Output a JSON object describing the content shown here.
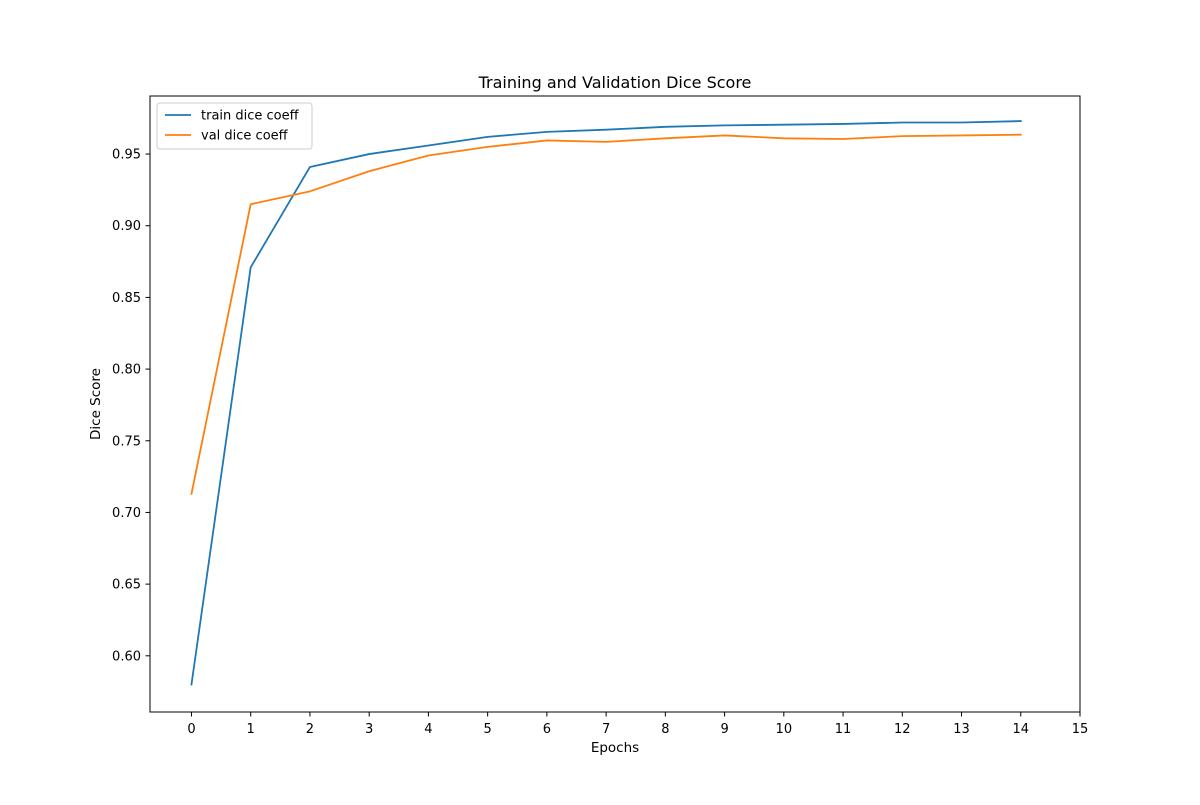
{
  "chart_data": {
    "type": "line",
    "title": "Training and Validation Dice Score",
    "xlabel": "Epochs",
    "ylabel": "Dice Score",
    "xlim": [
      -0.7,
      15
    ],
    "ylim": [
      0.5608,
      0.9905
    ],
    "xticks": [
      0,
      1,
      2,
      3,
      4,
      5,
      6,
      7,
      8,
      9,
      10,
      11,
      12,
      13,
      14,
      15
    ],
    "xtick_labels": [
      "0",
      "1",
      "2",
      "3",
      "4",
      "5",
      "6",
      "7",
      "8",
      "9",
      "10",
      "11",
      "12",
      "13",
      "14",
      "15"
    ],
    "yticks": [
      0.6,
      0.65,
      0.7,
      0.75,
      0.8,
      0.85,
      0.9,
      0.95
    ],
    "ytick_labels": [
      "0.60",
      "0.65",
      "0.70",
      "0.75",
      "0.80",
      "0.85",
      "0.90",
      "0.95"
    ],
    "grid": false,
    "legend_position": "upper left",
    "x": [
      0,
      1,
      2,
      3,
      4,
      5,
      6,
      7,
      8,
      9,
      10,
      11,
      12,
      13,
      14
    ],
    "series": [
      {
        "name": "train dice coeff",
        "color": "#1f77b4",
        "values": [
          0.58,
          0.871,
          0.941,
          0.95,
          0.956,
          0.962,
          0.9655,
          0.967,
          0.969,
          0.97,
          0.9705,
          0.971,
          0.972,
          0.972,
          0.973
        ]
      },
      {
        "name": "val dice coeff",
        "color": "#ff7f0e",
        "values": [
          0.713,
          0.915,
          0.924,
          0.938,
          0.949,
          0.955,
          0.9595,
          0.9585,
          0.961,
          0.963,
          0.961,
          0.9605,
          0.9625,
          0.963,
          0.9635
        ]
      }
    ]
  }
}
